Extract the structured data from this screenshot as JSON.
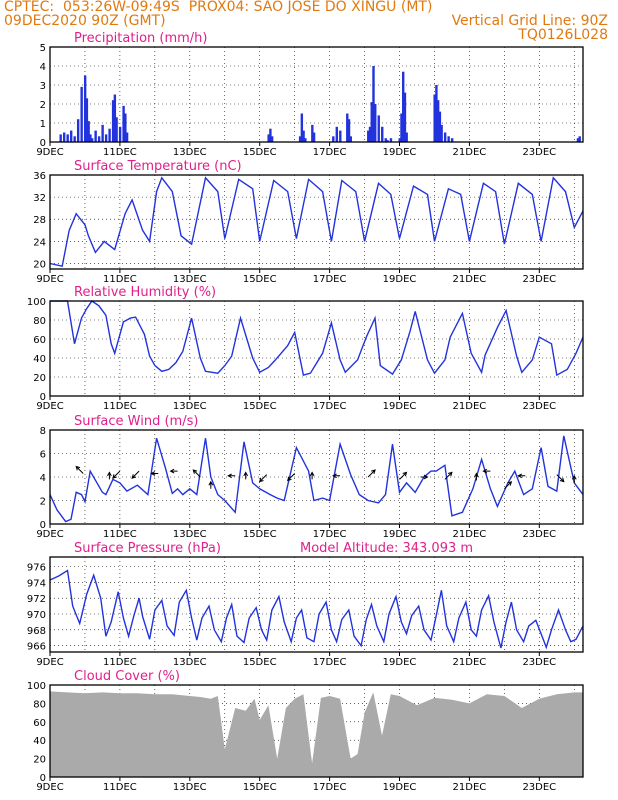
{
  "header": {
    "line1_left": "CPTEC:  053:26W-09:49S  PROX04: SAO JOSE DO XINGU (MT)",
    "line2_left": "09DEC2020 90Z (GMT)",
    "line2_right": "Vertical Grid Line: 90Z",
    "line3_right": "TQ0126L028"
  },
  "colors": {
    "header": "#e07a10",
    "title": "#e0208a",
    "series": "#2233dd",
    "cloud": "#aaaaaa"
  },
  "date_ticks": [
    "9DEC",
    "11DEC",
    "13DEC",
    "15DEC",
    "17DEC",
    "19DEC",
    "21DEC",
    "23DEC"
  ],
  "panels": [
    {
      "id": "precip",
      "title": "Precipitation (mm/h)",
      "extra": "",
      "y_ticks": [
        "0",
        "1",
        "2",
        "3",
        "4",
        "5"
      ]
    },
    {
      "id": "temp",
      "title": "Surface Temperature (nC)",
      "extra": "",
      "y_ticks": [
        "20",
        "24",
        "28",
        "32",
        "36"
      ]
    },
    {
      "id": "rh",
      "title": "Relative Humidity (%)",
      "extra": "",
      "y_ticks": [
        "0",
        "20",
        "40",
        "60",
        "80",
        "100"
      ]
    },
    {
      "id": "wind",
      "title": "Surface Wind (m/s)",
      "extra": "",
      "y_ticks": [
        "0",
        "2",
        "4",
        "6",
        "8"
      ]
    },
    {
      "id": "pres",
      "title": "Surface Pressure (hPa)",
      "extra": "Model Altitude: 343.093 m",
      "y_ticks": [
        "966",
        "968",
        "970",
        "972",
        "974",
        "976"
      ]
    },
    {
      "id": "cloud",
      "title": "Cloud Cover (%)",
      "extra": "",
      "y_ticks": [
        "0",
        "20",
        "40",
        "60",
        "80",
        "100"
      ]
    }
  ],
  "chart_data": [
    {
      "type": "bar",
      "title": "Precipitation (mm/h)",
      "xlabel": "",
      "ylabel": "mm/h",
      "x_unit": "days since 9DEC 00Z",
      "ylim": [
        0,
        5
      ],
      "x_range": [
        0,
        15.25
      ],
      "x": [
        0.3,
        0.4,
        0.5,
        0.6,
        0.7,
        0.8,
        0.9,
        1.0,
        1.05,
        1.1,
        1.15,
        1.2,
        1.3,
        1.4,
        1.5,
        1.6,
        1.7,
        1.8,
        1.85,
        1.9,
        2.0,
        2.1,
        2.15,
        2.2,
        6.25,
        6.3,
        6.35,
        7.15,
        7.2,
        7.25,
        7.3,
        7.5,
        7.55,
        8.1,
        8.2,
        8.3,
        8.5,
        8.55,
        8.6,
        9.1,
        9.15,
        9.2,
        9.25,
        9.3,
        9.4,
        9.5,
        9.6,
        9.65,
        9.75,
        10.0,
        10.05,
        10.1,
        10.15,
        10.2,
        11.0,
        11.05,
        11.1,
        11.15,
        11.2,
        11.3,
        11.4,
        11.5,
        15.1,
        15.15
      ],
      "values": [
        0.4,
        0.5,
        0.4,
        0.6,
        0.3,
        1.2,
        2.9,
        3.5,
        2.3,
        1.1,
        0.4,
        0.2,
        0.6,
        0.3,
        0.9,
        0.4,
        0.7,
        2.2,
        2.5,
        1.3,
        0.8,
        1.9,
        1.5,
        0.5,
        0.4,
        0.7,
        0.3,
        0.3,
        1.5,
        0.6,
        0.2,
        0.9,
        0.5,
        0.3,
        0.8,
        0.6,
        1.5,
        1.2,
        0.3,
        0.6,
        0.8,
        2.1,
        4.0,
        2.0,
        1.4,
        0.8,
        0.2,
        0.1,
        0.2,
        0.2,
        1.5,
        3.7,
        2.6,
        0.5,
        2.5,
        3.0,
        2.2,
        1.6,
        0.9,
        0.5,
        0.3,
        0.2,
        0.2,
        0.3
      ]
    },
    {
      "type": "line",
      "title": "Surface Temperature (nC)",
      "xlabel": "",
      "ylabel": "nC",
      "x_unit": "days since 9DEC 00Z",
      "ylim": [
        19,
        36
      ],
      "x_range": [
        0,
        15.25
      ],
      "x": [
        0,
        0.35,
        0.55,
        0.75,
        1.0,
        1.1,
        1.3,
        1.55,
        1.85,
        2.15,
        2.35,
        2.65,
        2.85,
        3.05,
        3.2,
        3.5,
        3.75,
        4.05,
        4.45,
        4.8,
        5.0,
        5.4,
        5.8,
        6.0,
        6.4,
        6.8,
        7.05,
        7.4,
        7.8,
        8.05,
        8.35,
        8.75,
        9.0,
        9.4,
        9.75,
        10.0,
        10.4,
        10.8,
        11.0,
        11.4,
        11.75,
        12.0,
        12.4,
        12.75,
        13.0,
        13.4,
        13.8,
        14.05,
        14.4,
        14.75,
        15.0,
        15.25
      ],
      "values": [
        20.0,
        19.5,
        26.0,
        29.0,
        27.0,
        25.0,
        22.0,
        24.0,
        22.5,
        29.0,
        31.5,
        26.0,
        24.0,
        33.0,
        35.5,
        33.0,
        25.0,
        23.5,
        35.5,
        33.0,
        24.5,
        35.2,
        33.5,
        24.0,
        35.0,
        33.0,
        24.5,
        35.2,
        33.0,
        24.0,
        35.0,
        33.0,
        24.0,
        34.5,
        32.5,
        24.5,
        34.0,
        32.5,
        24.0,
        33.5,
        32.5,
        24.0,
        34.5,
        33.0,
        23.5,
        34.5,
        32.5,
        24.0,
        35.5,
        33.0,
        26.5,
        29.5
      ]
    },
    {
      "type": "line",
      "title": "Relative Humidity (%)",
      "xlabel": "",
      "ylabel": "%",
      "x_unit": "days since 9DEC 00Z",
      "ylim": [
        0,
        100
      ],
      "x_range": [
        0,
        15.25
      ],
      "x": [
        0,
        0.5,
        0.7,
        0.9,
        1.05,
        1.2,
        1.4,
        1.6,
        1.75,
        1.85,
        2.1,
        2.3,
        2.45,
        2.7,
        2.85,
        3.0,
        3.2,
        3.4,
        3.6,
        3.8,
        4.05,
        4.3,
        4.45,
        4.8,
        5.0,
        5.2,
        5.45,
        5.8,
        6.0,
        6.25,
        6.45,
        6.8,
        7.0,
        7.25,
        7.45,
        7.8,
        8.05,
        8.3,
        8.45,
        8.8,
        9.05,
        9.3,
        9.45,
        9.8,
        10.05,
        10.3,
        10.45,
        10.8,
        11.0,
        11.3,
        11.45,
        11.8,
        12.05,
        12.35,
        12.45,
        12.8,
        13.05,
        13.35,
        13.5,
        13.8,
        14.0,
        14.35,
        14.5,
        14.8,
        15.05,
        15.25
      ],
      "values": [
        100,
        100,
        55,
        82,
        92,
        100,
        95,
        85,
        55,
        45,
        78,
        82,
        83,
        65,
        42,
        32,
        26,
        28,
        35,
        47,
        82,
        40,
        26,
        24,
        32,
        42,
        82,
        40,
        25,
        30,
        38,
        53,
        67,
        22,
        24,
        45,
        77,
        38,
        25,
        38,
        62,
        82,
        32,
        23,
        38,
        68,
        89,
        38,
        24,
        38,
        62,
        87,
        45,
        25,
        43,
        72,
        90,
        42,
        25,
        38,
        62,
        55,
        22,
        28,
        45,
        62
      ]
    },
    {
      "type": "line",
      "title": "Surface Wind (m/s)",
      "xlabel": "",
      "ylabel": "m/s",
      "x_unit": "days since 9DEC 00Z",
      "ylim": [
        0,
        8
      ],
      "x_range": [
        0,
        15.25
      ],
      "x": [
        0,
        0.2,
        0.45,
        0.6,
        0.75,
        0.9,
        1.0,
        1.15,
        1.5,
        1.6,
        1.8,
        2.0,
        2.2,
        2.5,
        2.8,
        3.05,
        3.3,
        3.5,
        3.65,
        3.8,
        4.0,
        4.2,
        4.45,
        4.6,
        4.8,
        5.0,
        5.3,
        5.55,
        5.8,
        6.0,
        6.3,
        6.5,
        6.7,
        7.05,
        7.4,
        7.55,
        7.8,
        8.0,
        8.3,
        8.6,
        8.85,
        9.1,
        9.4,
        9.6,
        9.8,
        10.0,
        10.2,
        10.45,
        10.7,
        10.9,
        11.05,
        11.3,
        11.5,
        11.8,
        12.1,
        12.35,
        12.6,
        12.8,
        13.1,
        13.3,
        13.55,
        13.8,
        14.05,
        14.25,
        14.5,
        14.7,
        15.0,
        15.25
      ],
      "values": [
        2.5,
        1.2,
        0.2,
        0.4,
        2.7,
        2.5,
        1.9,
        4.5,
        2.7,
        2.5,
        3.8,
        3.5,
        2.8,
        3.3,
        2.5,
        7.3,
        4.8,
        2.6,
        3.0,
        2.5,
        3.0,
        2.5,
        7.3,
        4.0,
        2.5,
        2.0,
        1.0,
        7.0,
        3.5,
        3.0,
        2.5,
        2.2,
        2.0,
        6.5,
        4.5,
        2.0,
        2.2,
        2.0,
        6.8,
        4.2,
        2.5,
        2.0,
        1.8,
        2.5,
        6.8,
        2.7,
        3.5,
        2.7,
        4.0,
        4.5,
        4.5,
        5.0,
        0.7,
        1.0,
        3.0,
        5.5,
        3.0,
        1.5,
        3.5,
        4.5,
        2.5,
        3.0,
        6.5,
        3.2,
        2.8,
        7.5,
        3.5,
        2.5
      ]
    },
    {
      "type": "line",
      "title": "Surface Pressure (hPa)",
      "xlabel": "",
      "ylabel": "hPa",
      "x_unit": "days since 9DEC 00Z",
      "ylim": [
        965.2,
        977.2
      ],
      "x_range": [
        0,
        15.25
      ],
      "x": [
        0,
        0.25,
        0.5,
        0.65,
        0.85,
        1.05,
        1.25,
        1.45,
        1.6,
        1.75,
        1.95,
        2.1,
        2.25,
        2.4,
        2.55,
        2.65,
        2.85,
        3.0,
        3.2,
        3.35,
        3.55,
        3.7,
        3.9,
        4.05,
        4.2,
        4.35,
        4.55,
        4.7,
        4.9,
        5.05,
        5.2,
        5.35,
        5.55,
        5.7,
        5.9,
        6.05,
        6.2,
        6.35,
        6.55,
        6.7,
        6.9,
        7.05,
        7.2,
        7.35,
        7.55,
        7.7,
        7.9,
        8.05,
        8.2,
        8.35,
        8.55,
        8.7,
        8.9,
        9.05,
        9.2,
        9.35,
        9.55,
        9.7,
        9.9,
        10.05,
        10.2,
        10.35,
        10.55,
        10.7,
        10.9,
        11.05,
        11.2,
        11.35,
        11.55,
        11.7,
        11.9,
        12.05,
        12.2,
        12.35,
        12.55,
        12.7,
        12.9,
        13.05,
        13.2,
        13.35,
        13.55,
        13.7,
        13.9,
        14.05,
        14.2,
        14.35,
        14.55,
        14.75,
        14.9,
        15.05,
        15.25
      ],
      "values": [
        974.3,
        974.8,
        975.5,
        971.0,
        968.8,
        972.5,
        974.9,
        972.0,
        967.2,
        969.0,
        972.8,
        969.5,
        967.2,
        969.8,
        972.0,
        969.7,
        966.8,
        970.5,
        971.7,
        968.5,
        967.3,
        971.5,
        973.0,
        969.5,
        966.7,
        969.5,
        971.0,
        968.0,
        966.5,
        969.5,
        971.2,
        967.2,
        966.4,
        969.5,
        970.8,
        968.0,
        966.7,
        970.5,
        972.2,
        969.0,
        966.5,
        969.5,
        970.5,
        967.0,
        966.5,
        970.0,
        971.5,
        968.0,
        966.5,
        969.3,
        970.5,
        967.2,
        966.0,
        969.3,
        971.2,
        968.5,
        966.5,
        970.0,
        972.2,
        969.0,
        967.5,
        969.8,
        971.0,
        968.0,
        966.7,
        969.8,
        973.0,
        968.5,
        966.5,
        969.5,
        971.5,
        968.0,
        967.2,
        970.5,
        972.3,
        969.0,
        965.7,
        969.0,
        971.5,
        968.0,
        966.5,
        968.5,
        969.2,
        967.5,
        965.8,
        968.0,
        970.5,
        968.0,
        966.5,
        966.8,
        968.5
      ]
    },
    {
      "type": "bar",
      "title": "Cloud Cover (%)",
      "xlabel": "",
      "ylabel": "%",
      "x_unit": "days since 9DEC 00Z",
      "ylim": [
        0,
        100
      ],
      "x_range": [
        0,
        15.25
      ],
      "x": [
        0,
        0.5,
        1.0,
        1.5,
        2.0,
        2.5,
        3.0,
        3.5,
        4.0,
        4.3,
        4.6,
        4.8,
        5.0,
        5.3,
        5.6,
        5.85,
        6.0,
        6.25,
        6.5,
        6.75,
        7.0,
        7.25,
        7.5,
        7.75,
        8.0,
        8.3,
        8.6,
        8.8,
        9.0,
        9.25,
        9.5,
        9.75,
        10.0,
        10.5,
        11.0,
        11.5,
        12.0,
        12.5,
        13.0,
        13.5,
        14.0,
        14.5,
        15.0
      ],
      "values": [
        93,
        92,
        91,
        92,
        91,
        91,
        90,
        90,
        88,
        87,
        85,
        88,
        30,
        75,
        72,
        85,
        62,
        78,
        20,
        75,
        85,
        90,
        15,
        86,
        88,
        85,
        20,
        25,
        70,
        92,
        45,
        90,
        88,
        78,
        86,
        84,
        80,
        90,
        88,
        75,
        85,
        90,
        92
      ]
    }
  ]
}
